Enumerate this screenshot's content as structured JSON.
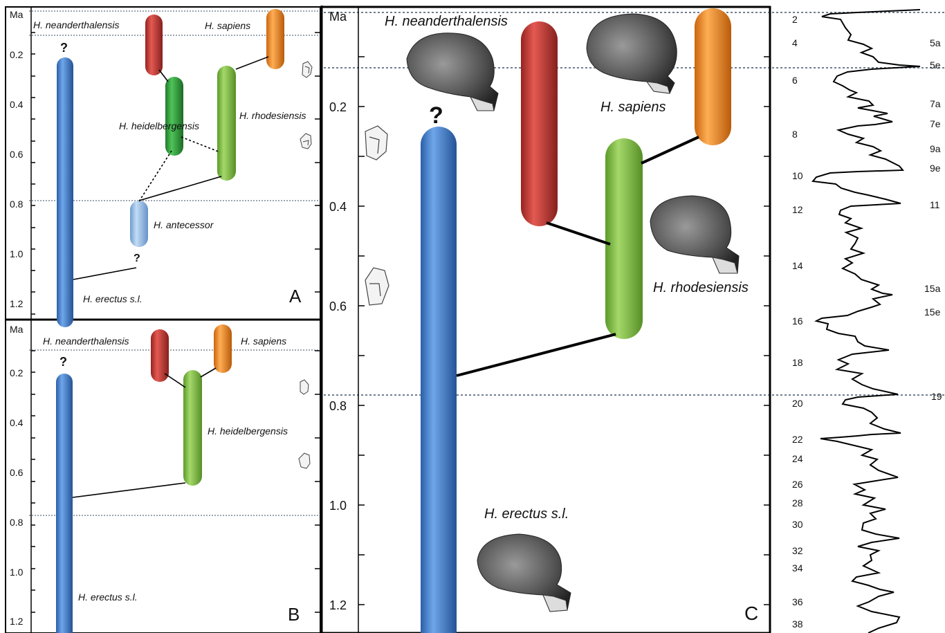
{
  "figure": {
    "panels": [
      {
        "id": "A",
        "letter": "A",
        "axis_unit": "Ma",
        "y_ticks": [
          "0.2",
          "0.4",
          "0.6",
          "0.8",
          "1.0",
          "1.2"
        ],
        "reference_lines_ma": [
          0.0,
          0.12,
          0.78
        ],
        "lineages": [
          {
            "key": "erectus",
            "name": "H. erectus s.l.",
            "start_ma": 1.25,
            "end_ma": 0.22,
            "color": "#3f7fd0",
            "uncertain_end": true
          },
          {
            "key": "neanderthalensis",
            "name": "H. neanderthalensis",
            "start_ma": 0.27,
            "end_ma": 0.03,
            "color": "#c0322e"
          },
          {
            "key": "heidelbergensis",
            "name": "H. heidelbergensis",
            "start_ma": 0.6,
            "end_ma": 0.28,
            "color": "#2ea33a"
          },
          {
            "key": "rhodesiensis",
            "name": "H. rhodesiensis",
            "start_ma": 0.7,
            "end_ma": 0.25,
            "color": "#7dba3e"
          },
          {
            "key": "sapiens",
            "name": "H. sapiens",
            "start_ma": 0.23,
            "end_ma": 0.0,
            "color": "#f08a1c"
          },
          {
            "key": "antecessor",
            "name": "H. antecessor",
            "start_ma": 0.95,
            "end_ma": 0.78,
            "color": "#8fb9e6",
            "uncertain_start": true
          }
        ],
        "question_marks": [
          "?",
          "?"
        ]
      },
      {
        "id": "B",
        "letter": "B",
        "axis_unit": "Ma",
        "y_ticks": [
          "0.2",
          "0.4",
          "0.6",
          "0.8",
          "1.0",
          "1.2"
        ],
        "reference_lines_ma": [
          0.0,
          0.12,
          0.78
        ],
        "lineages": [
          {
            "key": "erectus",
            "name": "H. erectus s.l.",
            "start_ma": 1.25,
            "end_ma": 0.22,
            "color": "#3f7fd0",
            "uncertain_end": true
          },
          {
            "key": "neanderthalensis",
            "name": "H. neanderthalensis",
            "start_ma": 0.22,
            "end_ma": 0.03,
            "color": "#c0322e"
          },
          {
            "key": "sapiens",
            "name": "H. sapiens",
            "start_ma": 0.18,
            "end_ma": 0.03,
            "color": "#f08a1c"
          },
          {
            "key": "heidelbergensis",
            "name": "H. heidelbergensis",
            "start_ma": 0.65,
            "end_ma": 0.2,
            "color": "#7dba3e"
          }
        ],
        "question_marks": [
          "?"
        ]
      },
      {
        "id": "C",
        "letter": "C",
        "axis_unit": "Ma",
        "y_ticks": [
          "0.2",
          "0.4",
          "0.6",
          "0.8",
          "1.0",
          "1.2"
        ],
        "reference_lines_ma": [
          0.0,
          0.12,
          0.78
        ],
        "lineages": [
          {
            "key": "erectus",
            "name": "H. erectus s.l.",
            "start_ma": 1.3,
            "end_ma": 0.24,
            "color": "#3f7fd0",
            "uncertain_end": true
          },
          {
            "key": "neanderthalensis",
            "name": "H. neanderthalensis",
            "start_ma": 0.43,
            "end_ma": 0.02,
            "color": "#c0322e"
          },
          {
            "key": "rhodesiensis",
            "name": "H. rhodesiensis",
            "start_ma": 0.66,
            "end_ma": 0.27,
            "color": "#7dba3e"
          },
          {
            "key": "sapiens",
            "name": "H. sapiens",
            "start_ma": 0.26,
            "end_ma": 0.0,
            "color": "#f08a1c"
          }
        ],
        "question_marks": [
          "?"
        ]
      }
    ],
    "isotope_record": {
      "mis_left": [
        "2",
        "4",
        "6",
        "8",
        "10",
        "12",
        "14",
        "16",
        "18",
        "20",
        "22",
        "24",
        "26",
        "28",
        "30",
        "32",
        "34",
        "36",
        "38"
      ],
      "mis_right": [
        "5a",
        "5e",
        "7a",
        "7e",
        "9a",
        "9e",
        "11",
        "15a",
        "15e",
        "19"
      ]
    }
  }
}
